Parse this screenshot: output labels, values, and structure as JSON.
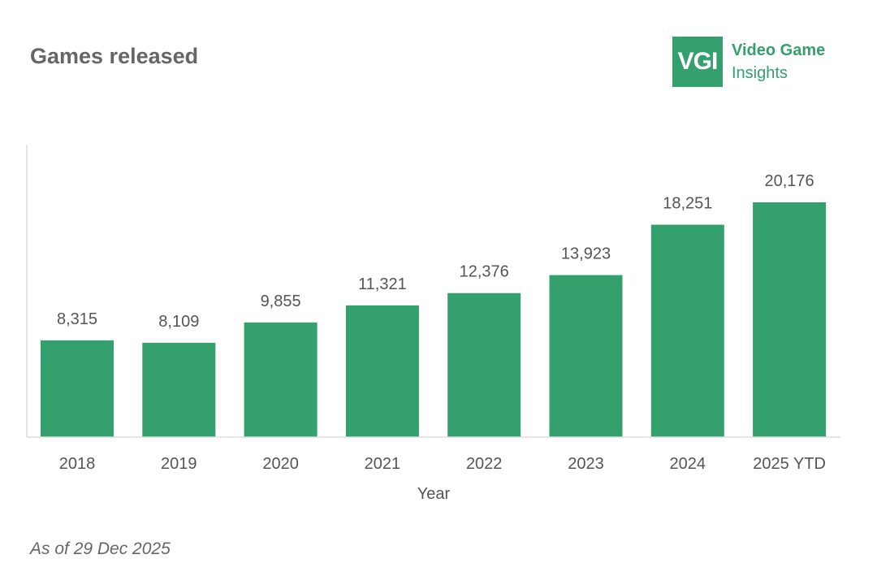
{
  "header": {
    "title": "Games released"
  },
  "logo": {
    "mark": "VGI",
    "line1": "Video Game",
    "line2": "Insights"
  },
  "footer": {
    "note": "As of 29 Dec 2025"
  },
  "colors": {
    "bar": "#34a06d",
    "text": "#555555",
    "axis": "#dddddd"
  },
  "chart_data": {
    "type": "bar",
    "title": "Games released",
    "xlabel": "Year",
    "ylabel": "",
    "categories": [
      "2018",
      "2019",
      "2020",
      "2021",
      "2022",
      "2023",
      "2024",
      "2025 YTD"
    ],
    "values": [
      8315,
      8109,
      9855,
      11321,
      12376,
      13923,
      18251,
      20176
    ],
    "data_labels": [
      "8,315",
      "8,109",
      "9,855",
      "11,321",
      "12,376",
      "13,923",
      "18,251",
      "20,176"
    ],
    "ylim": [
      0,
      25000
    ],
    "grid": false,
    "legend": "none"
  }
}
